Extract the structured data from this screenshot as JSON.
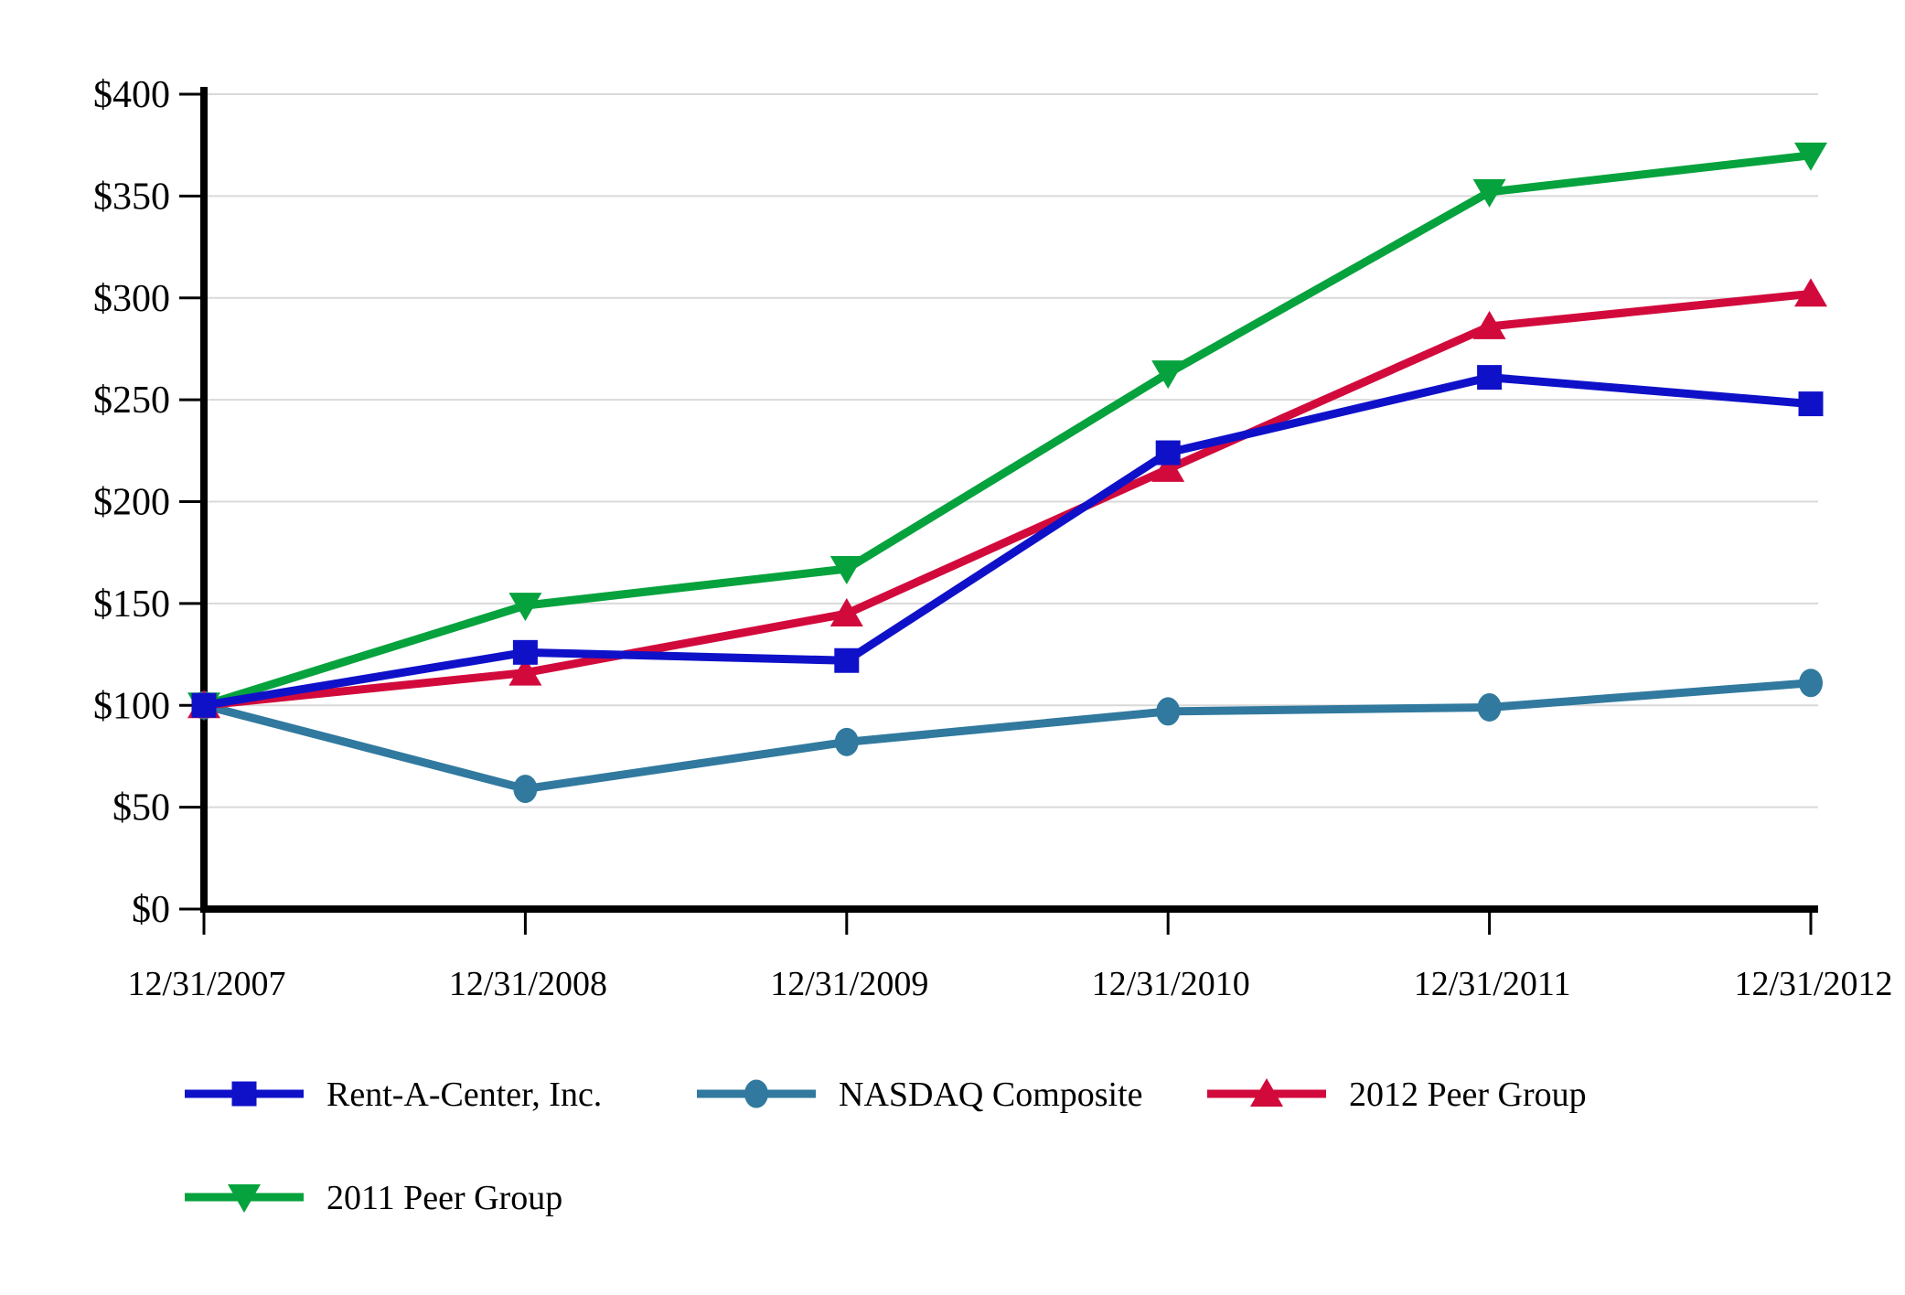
{
  "chart_data": {
    "type": "line",
    "title": "",
    "categories": [
      "12/31/2007",
      "12/31/2008",
      "12/31/2009",
      "12/31/2010",
      "12/31/2011",
      "12/31/2012"
    ],
    "x": [
      0,
      1,
      2,
      3,
      4,
      5
    ],
    "series": [
      {
        "name": "Rent-A-Center, Inc.",
        "marker": "square",
        "color": "#0f11c9",
        "values": [
          100,
          126,
          122,
          224,
          261,
          248
        ]
      },
      {
        "name": "NASDAQ Composite",
        "marker": "circle",
        "color": "#31799e",
        "values": [
          100,
          59,
          82,
          97,
          99,
          111
        ]
      },
      {
        "name": "2012 Peer Group",
        "marker": "triangle-up",
        "color": "#d20a3c",
        "values": [
          100,
          116,
          145,
          216,
          286,
          302
        ]
      },
      {
        "name": "2011 Peer Group",
        "marker": "triangle-down",
        "color": "#06a23d",
        "values": [
          100,
          149,
          167,
          263,
          352,
          370
        ]
      }
    ],
    "y_axis": {
      "min": 0,
      "max": 400,
      "step": 50,
      "tick_labels": [
        "$0",
        "$50",
        "$100",
        "$150",
        "$200",
        "$250",
        "$300",
        "$350",
        "$400"
      ]
    },
    "grid": "horizontal-light-gray",
    "grid_color": "#d9d9d9",
    "axis_color": "#000000",
    "legend_position": "bottom-left",
    "legend_rows": [
      [
        0,
        1,
        2
      ],
      [
        3
      ]
    ]
  }
}
